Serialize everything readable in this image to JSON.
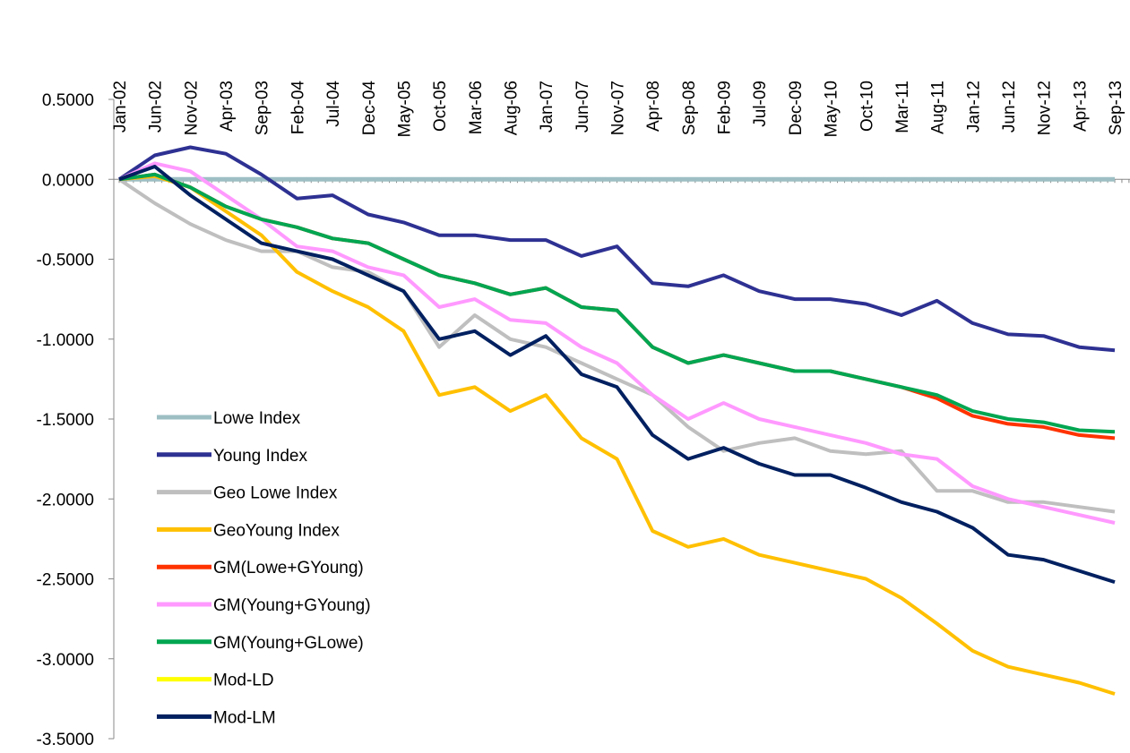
{
  "chart_data": {
    "type": "line",
    "categories": [
      "Jan-02",
      "Jun-02",
      "Nov-02",
      "Apr-03",
      "Sep-03",
      "Feb-04",
      "Jul-04",
      "Dec-04",
      "May-05",
      "Oct-05",
      "Mar-06",
      "Aug-06",
      "Jan-07",
      "Jun-07",
      "Nov-07",
      "Apr-08",
      "Sep-08",
      "Feb-09",
      "Jul-09",
      "Dec-09",
      "May-10",
      "Oct-10",
      "Mar-11",
      "Aug-11",
      "Jan-12",
      "Jun-12",
      "Nov-12",
      "Apr-13",
      "Sep-13"
    ],
    "ylim": [
      -3.5,
      0.5
    ],
    "yticks": [
      {
        "value": 0.5,
        "label": "0.5000"
      },
      {
        "value": 0,
        "label": "0.0000"
      },
      {
        "value": -0.5,
        "label": "-0.5000"
      },
      {
        "value": -1,
        "label": "-1.0000"
      },
      {
        "value": -1.5,
        "label": "-1.5000"
      },
      {
        "value": -2,
        "label": "-2.0000"
      },
      {
        "value": -2.5,
        "label": "-2.5000"
      },
      {
        "value": -3,
        "label": "-3.0000"
      },
      {
        "value": -3.5,
        "label": "-3.5000"
      }
    ],
    "series": [
      {
        "name": "Lowe Index",
        "color": "#9dbfc4",
        "values": [
          0,
          0,
          0,
          0,
          0,
          0,
          0,
          0,
          0,
          0,
          0,
          0,
          0,
          0,
          0,
          0,
          0,
          0,
          0,
          0,
          0,
          0,
          0,
          0,
          0,
          0,
          0,
          0,
          0
        ]
      },
      {
        "name": "Young Index",
        "color": "#2e3192",
        "values": [
          0,
          0.15,
          0.2,
          0.16,
          0.03,
          -0.12,
          -0.1,
          -0.22,
          -0.27,
          -0.35,
          -0.35,
          -0.38,
          -0.38,
          -0.48,
          -0.42,
          -0.65,
          -0.67,
          -0.6,
          -0.7,
          -0.75,
          -0.75,
          -0.78,
          -0.85,
          -0.76,
          -0.9,
          -0.97,
          -0.98,
          -1.05,
          -1.07
        ]
      },
      {
        "name": "Geo Lowe Index",
        "color": "#bfbfbf",
        "values": [
          0,
          -0.15,
          -0.28,
          -0.38,
          -0.45,
          -0.45,
          -0.55,
          -0.58,
          -0.7,
          -1.05,
          -0.85,
          -1.0,
          -1.05,
          -1.15,
          -1.25,
          -1.35,
          -1.55,
          -1.7,
          -1.65,
          -1.62,
          -1.7,
          -1.72,
          -1.7,
          -1.95,
          -1.95,
          -2.02,
          -2.02,
          -2.05,
          -2.08
        ]
      },
      {
        "name": "GeoYoung Index",
        "color": "#ffc000",
        "values": [
          0,
          0.02,
          -0.05,
          -0.2,
          -0.35,
          -0.58,
          -0.7,
          -0.8,
          -0.95,
          -1.35,
          -1.3,
          -1.45,
          -1.35,
          -1.62,
          -1.75,
          -2.2,
          -2.3,
          -2.25,
          -2.35,
          -2.4,
          -2.45,
          -2.5,
          -2.62,
          -2.78,
          -2.95,
          -3.05,
          -3.1,
          -3.15,
          -3.22
        ]
      },
      {
        "name": "GM(Lowe+GYoung)",
        "color": "#ff3300",
        "values": [
          0,
          0.03,
          -0.05,
          -0.17,
          -0.25,
          -0.3,
          -0.37,
          -0.4,
          -0.5,
          -0.6,
          -0.65,
          -0.72,
          -0.68,
          -0.8,
          -0.82,
          -1.05,
          -1.15,
          -1.1,
          -1.15,
          -1.2,
          -1.2,
          -1.25,
          -1.3,
          -1.37,
          -1.48,
          -1.53,
          -1.55,
          -1.6,
          -1.62
        ]
      },
      {
        "name": "GM(Young+GYoung)",
        "color": "#ff99ff",
        "values": [
          0,
          0.1,
          0.05,
          -0.1,
          -0.25,
          -0.42,
          -0.45,
          -0.55,
          -0.6,
          -0.8,
          -0.75,
          -0.88,
          -0.9,
          -1.05,
          -1.15,
          -1.35,
          -1.5,
          -1.4,
          -1.5,
          -1.55,
          -1.6,
          -1.65,
          -1.72,
          -1.75,
          -1.92,
          -2.0,
          -2.05,
          -2.1,
          -2.15
        ]
      },
      {
        "name": "GM(Young+GLowe)",
        "color": "#00a651",
        "values": [
          0,
          0.03,
          -0.05,
          -0.17,
          -0.25,
          -0.3,
          -0.37,
          -0.4,
          -0.5,
          -0.6,
          -0.65,
          -0.72,
          -0.68,
          -0.8,
          -0.82,
          -1.05,
          -1.15,
          -1.1,
          -1.15,
          -1.2,
          -1.2,
          -1.25,
          -1.3,
          -1.35,
          -1.45,
          -1.5,
          -1.52,
          -1.57,
          -1.58
        ]
      },
      {
        "name": "Mod-LD",
        "color": "#ffff00",
        "values": [
          null,
          null,
          null,
          null,
          null,
          null,
          null,
          null,
          null,
          null,
          null,
          null,
          null,
          null,
          null,
          null,
          null,
          null,
          null,
          null,
          null,
          null,
          null,
          null,
          null,
          null,
          null,
          null,
          null
        ]
      },
      {
        "name": "Mod-LM",
        "color": "#002060",
        "values": [
          0,
          0.08,
          -0.1,
          -0.25,
          -0.4,
          -0.45,
          -0.5,
          -0.6,
          -0.7,
          -1.0,
          -0.95,
          -1.1,
          -0.98,
          -1.22,
          -1.3,
          -1.6,
          -1.75,
          -1.68,
          -1.78,
          -1.85,
          -1.85,
          -1.93,
          -2.02,
          -2.08,
          -2.18,
          -2.35,
          -2.38,
          -2.45,
          -2.52
        ]
      }
    ]
  }
}
